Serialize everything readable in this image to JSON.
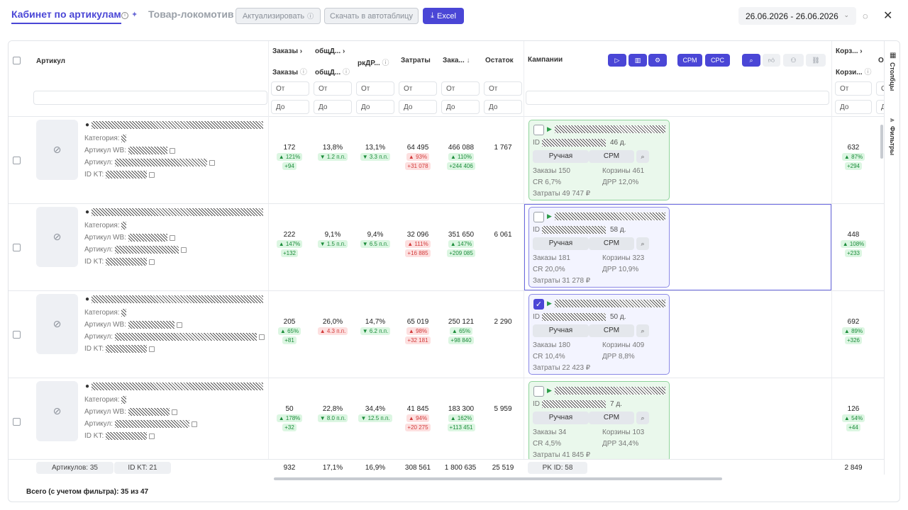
{
  "header": {
    "tab_active": "Кабинет по артикулам",
    "tab_second": "Товар-локомотив",
    "btn_actualize": "Актуализировать",
    "btn_download": "Скачать в автотаблицу",
    "btn_excel": "Excel",
    "date_range": "26.06.2026 - 26.06.2026"
  },
  "columns": {
    "article": "Артикул",
    "orders_group": "Заказы",
    "orders": "Заказы",
    "total_group": "общД...",
    "total": "общД...",
    "rk": "ркДР...",
    "costs": "Затраты",
    "orders_sum": "Зака...",
    "stock": "Остаток",
    "campaigns": "Кампании",
    "carts_group": "Корз...",
    "carts": "Корзи...",
    "o_col": "О"
  },
  "header_buttons": {
    "cpm": "CPM",
    "cpc": "CPC"
  },
  "filters": {
    "from": "От",
    "to": "До"
  },
  "labels": {
    "category": "Категория:",
    "article_wb": "Артикул WB:",
    "article": "Артикул:",
    "id_kt": "ID KT:",
    "id": "ID",
    "manual": "Ручная",
    "cpm": "CPM",
    "orders": "Заказы",
    "carts": "Корзины",
    "cr": "CR",
    "drr": "ДРР",
    "costs": "Затраты"
  },
  "rows": [
    {
      "orders": "172",
      "orders_pct": "▲ 121%",
      "orders_abs": "+94",
      "total": "13,8%",
      "total_d": "▼ 1.2 п.п.",
      "rk": "13,1%",
      "rk_d": "▼ 3.3 п.п.",
      "costs": "64 495",
      "costs_pct": "▲ 93%",
      "costs_abs": "+31 078",
      "sum": "466 088",
      "sum_pct": "▲ 110%",
      "sum_abs": "+244 406",
      "stock": "1 767",
      "c_days": "46 д.",
      "c_orders": "150",
      "c_carts": "461",
      "c_cr": "6,7%",
      "c_drr": "12,0%",
      "c_costs": "49 747 ₽",
      "carts": "632",
      "carts_pct": "▲ 87%",
      "carts_abs": "+294"
    },
    {
      "orders": "222",
      "orders_pct": "▲ 147%",
      "orders_abs": "+132",
      "total": "9,1%",
      "total_d": "▼ 1.5 п.п.",
      "rk": "9,4%",
      "rk_d": "▼ 6.5 п.п.",
      "costs": "32 096",
      "costs_pct": "▲ 111%",
      "costs_abs": "+16 885",
      "sum": "351 650",
      "sum_pct": "▲ 147%",
      "sum_abs": "+209 085",
      "stock": "6 061",
      "c_days": "58 д.",
      "c_orders": "181",
      "c_carts": "323",
      "c_cr": "20,0%",
      "c_drr": "10,9%",
      "c_costs": "31 278 ₽",
      "carts": "448",
      "carts_pct": "▲ 108%",
      "carts_abs": "+233"
    },
    {
      "orders": "205",
      "orders_pct": "▲ 65%",
      "orders_abs": "+81",
      "total": "26,0%",
      "total_d": "▲ 4.3 п.п.",
      "rk": "14,7%",
      "rk_d": "▼ 6.2 п.п.",
      "costs": "65 019",
      "costs_pct": "▲ 98%",
      "costs_abs": "+32 181",
      "sum": "250 121",
      "sum_pct": "▲ 65%",
      "sum_abs": "+98 840",
      "stock": "2 290",
      "c_days": "50 д.",
      "c_orders": "180",
      "c_carts": "409",
      "c_cr": "10,4%",
      "c_drr": "8,8%",
      "c_costs": "22 423 ₽",
      "carts": "692",
      "carts_pct": "▲ 89%",
      "carts_abs": "+326"
    },
    {
      "orders": "50",
      "orders_pct": "▲ 178%",
      "orders_abs": "+32",
      "total": "22,8%",
      "total_d": "▼ 8.0 п.п.",
      "rk": "34,4%",
      "rk_d": "▼ 12.5 п.п.",
      "costs": "41 845",
      "costs_pct": "▲ 94%",
      "costs_abs": "+20 275",
      "sum": "183 300",
      "sum_pct": "▲ 162%",
      "sum_abs": "+113 451",
      "stock": "5 959",
      "c_days": "7 д.",
      "c_orders": "34",
      "c_carts": "103",
      "c_cr": "4,5%",
      "c_drr": "34,4%",
      "c_costs": "41 845 ₽",
      "carts": "126",
      "carts_pct": "▲ 54%",
      "carts_abs": "+44"
    }
  ],
  "footer": {
    "articles": "Артикулов: 35",
    "id_kt": "ID KT: 21",
    "orders": "932",
    "total": "17,1%",
    "rk": "16,9%",
    "costs": "308 561",
    "sum": "1 800 635",
    "stock": "25 519",
    "rk_id": "PK ID: 58",
    "carts": "2 849",
    "total_text": "Всего (с учетом фильтра): 35 из 47"
  },
  "sidebar": {
    "columns": "Столбцы",
    "filters": "Фильтры"
  }
}
